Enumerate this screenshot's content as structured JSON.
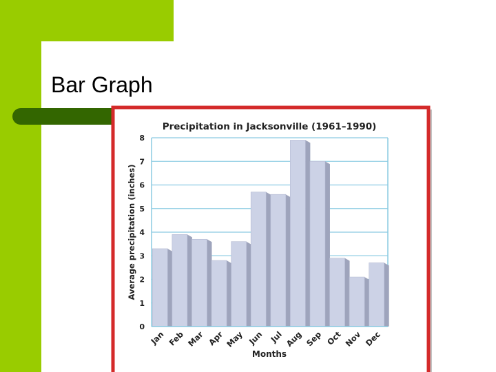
{
  "slide": {
    "title": "Bar Graph"
  },
  "chart_data": {
    "type": "bar",
    "title": "Precipitation in Jacksonville (1961–1990)",
    "x_label": "Months",
    "y_label": "Average precipitation (inches)",
    "categories": [
      "Jan",
      "Feb",
      "Mar",
      "Apr",
      "May",
      "Jun",
      "Jul",
      "Aug",
      "Sep",
      "Oct",
      "Nov",
      "Dec"
    ],
    "values": [
      3.3,
      3.9,
      3.7,
      2.8,
      3.6,
      5.7,
      5.6,
      7.9,
      7.0,
      2.9,
      2.1,
      2.7
    ],
    "color": "#ccd2e6",
    "ylim": [
      0,
      8
    ],
    "yticks": [
      0,
      1,
      2,
      3,
      4,
      5,
      6,
      7,
      8
    ],
    "grid": true
  }
}
